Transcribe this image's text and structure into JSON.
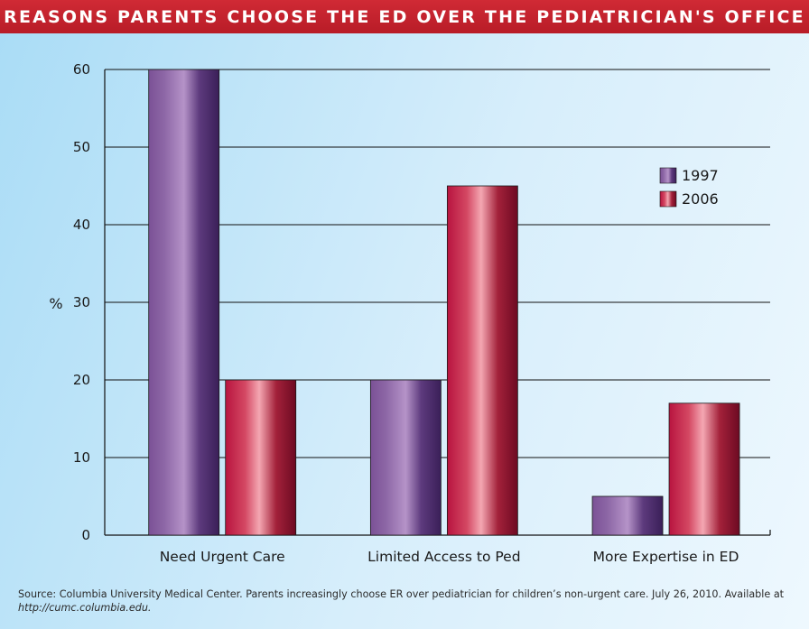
{
  "chart_data": {
    "type": "bar",
    "title": "REASONS PARENTS CHOOSE THE ED OVER THE PEDIATRICIAN'S OFFICE",
    "ylabel": "%",
    "xlabel": "",
    "ylim": [
      0,
      60
    ],
    "yticks": [
      0,
      10,
      20,
      30,
      40,
      50,
      60
    ],
    "grid": true,
    "legend": "right",
    "categories": [
      "Need Urgent Care",
      "Limited Access to Ped",
      "More Expertise in ED"
    ],
    "series": [
      {
        "name": "1997",
        "values": [
          60,
          20,
          5
        ],
        "color": "#6a3f86"
      },
      {
        "name": "2006",
        "values": [
          20,
          45,
          17
        ],
        "color": "#b3173f"
      }
    ]
  },
  "footer": {
    "source": "Source: Columbia University Medical Center. Parents increasingly choose ER over pediatrician for children’s non-urgent care. July 26, 2010. Available at",
    "url": "http://cumc.columbia.edu."
  }
}
